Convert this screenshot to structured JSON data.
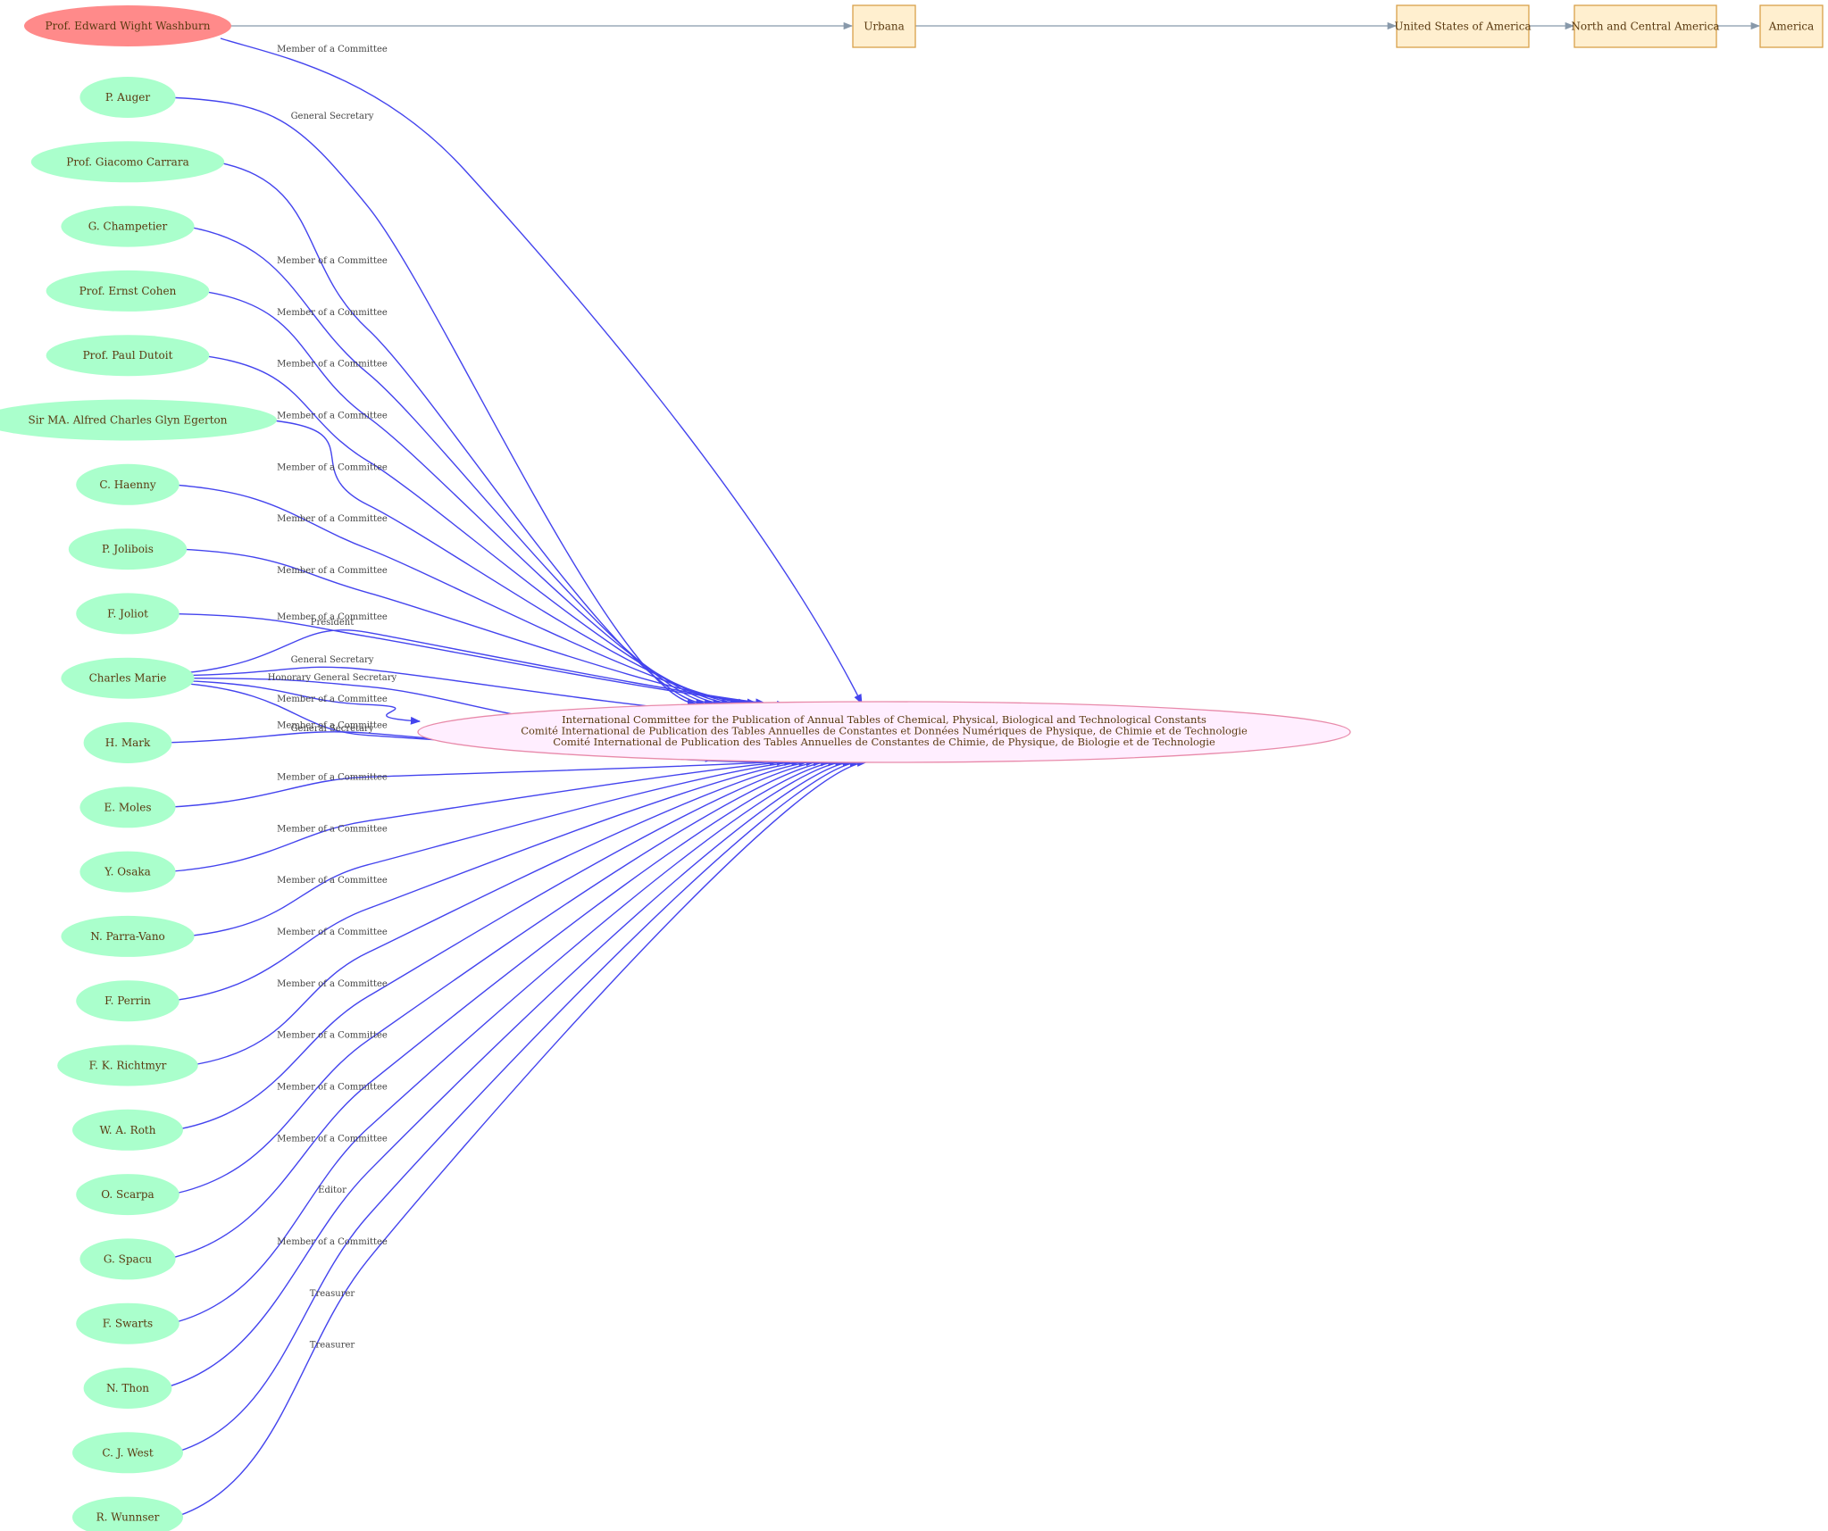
{
  "colors": {
    "person_fill": "#aaffcc",
    "main_person_fill": "#ff8a8a",
    "org_fill": "#ffeeff",
    "org_stroke": "#e88aaa",
    "place_fill": "#ffefcf",
    "place_stroke": "#d8a04a",
    "edge": "#4444ee",
    "place_edge": "#8899aa",
    "text": "#5a3a10"
  },
  "main_person": {
    "label": "Prof. Edward Wight Washburn",
    "relation": "Member of a Committee"
  },
  "places": [
    "Urbana",
    "United States of America",
    "North and Central America",
    "America"
  ],
  "organization": {
    "lines": [
      "International Committee for the Publication of Annual Tables of  Chemical, Physical, Biological and Technological Constants",
      "Comité International de Publication des Tables Annuelles de Constantes et Données Numériques de Physique, de Chimie et de Technologie",
      "Comité International de Publication des Tables Annuelles de Constantes de Chimie, de Physique, de Biologie et de Technologie"
    ]
  },
  "persons": [
    {
      "label": "P. Auger",
      "relations": [
        "General Secretary"
      ]
    },
    {
      "label": "Prof. Giacomo Carrara",
      "relations": [
        "Member of a Committee"
      ]
    },
    {
      "label": "G. Champetier",
      "relations": [
        "Member of a Committee"
      ]
    },
    {
      "label": "Prof. Ernst Cohen",
      "relations": [
        "Member of a Committee"
      ]
    },
    {
      "label": "Prof. Paul Dutoit",
      "relations": [
        "Member of a Committee"
      ]
    },
    {
      "label": "Sir MA. Alfred Charles Glyn Egerton",
      "relations": [
        "Member of a Committee"
      ]
    },
    {
      "label": "C. Haenny",
      "relations": [
        "Member of a Committee"
      ]
    },
    {
      "label": "P. Jolibois",
      "relations": [
        "Member of a Committee"
      ]
    },
    {
      "label": "F. Joliot",
      "relations": [
        "President"
      ]
    },
    {
      "label": "Charles Marie",
      "relations": [
        "Member of a Committee",
        "General Secretary",
        "Honorary General Secretary",
        "Member of a Committee",
        "General Secretary"
      ]
    },
    {
      "label": "H. Mark",
      "relations": [
        "Member of a Committee"
      ]
    },
    {
      "label": "E. Moles",
      "relations": [
        "Member of a Committee"
      ]
    },
    {
      "label": "Y. Osaka",
      "relations": [
        "Member of a Committee"
      ]
    },
    {
      "label": "N. Parra-Vano",
      "relations": [
        "Member of a Committee"
      ]
    },
    {
      "label": "F. Perrin",
      "relations": [
        "Member of a Committee"
      ]
    },
    {
      "label": "F. K. Richtmyr",
      "relations": [
        "Member of a Committee"
      ]
    },
    {
      "label": "W. A. Roth",
      "relations": [
        "Member of a Committee"
      ]
    },
    {
      "label": "O. Scarpa",
      "relations": [
        "Member of a Committee"
      ]
    },
    {
      "label": "G. Spacu",
      "relations": [
        "Member of a Committee"
      ]
    },
    {
      "label": "F. Swarts",
      "relations": [
        "Editor"
      ]
    },
    {
      "label": "N. Thon",
      "relations": [
        "Member of a Committee"
      ]
    },
    {
      "label": "C. J. West",
      "relations": [
        "Treasurer"
      ]
    },
    {
      "label": "R. Wunnser",
      "relations": [
        "Treasurer"
      ]
    }
  ]
}
